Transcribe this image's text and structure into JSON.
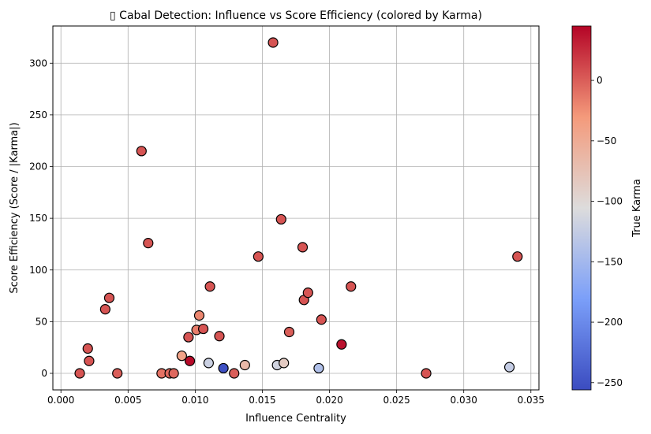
{
  "chart_data": {
    "type": "scatter",
    "title": "▯ Cabal Detection: Influence vs Score Efficiency (colored by Karma)",
    "xlabel": "Influence Centrality",
    "ylabel": "Score Efficiency (Score / |Karma|)",
    "xlim": [
      -0.0006,
      0.0356
    ],
    "ylim": [
      -16,
      336
    ],
    "xticks": [
      0.0,
      0.005,
      0.01,
      0.015,
      0.02,
      0.025,
      0.03,
      0.035
    ],
    "xtick_labels": [
      "0.000",
      "0.005",
      "0.010",
      "0.015",
      "0.020",
      "0.025",
      "0.030",
      "0.035"
    ],
    "yticks": [
      0,
      50,
      100,
      150,
      200,
      250,
      300
    ],
    "ytick_labels": [
      "0",
      "50",
      "100",
      "150",
      "200",
      "250",
      "300"
    ],
    "grid": true,
    "colorbar": {
      "label": "True Karma",
      "range": [
        -256,
        45
      ],
      "ticks": [
        0,
        -50,
        -100,
        -150,
        -200,
        -250
      ],
      "tick_labels": [
        "0",
        "−50",
        "−100",
        "−150",
        "−200",
        "−250"
      ],
      "colormap": "coolwarm"
    },
    "points": [
      {
        "x": 0.0014,
        "y": 0,
        "karma": 5
      },
      {
        "x": 0.002,
        "y": 24,
        "karma": 5
      },
      {
        "x": 0.0021,
        "y": 12,
        "karma": 5
      },
      {
        "x": 0.0033,
        "y": 62,
        "karma": 5
      },
      {
        "x": 0.0036,
        "y": 73,
        "karma": 5
      },
      {
        "x": 0.0042,
        "y": 0,
        "karma": 0
      },
      {
        "x": 0.006,
        "y": 215,
        "karma": 5
      },
      {
        "x": 0.0065,
        "y": 126,
        "karma": 5
      },
      {
        "x": 0.0075,
        "y": 0,
        "karma": -10
      },
      {
        "x": 0.0081,
        "y": 0,
        "karma": -5
      },
      {
        "x": 0.0084,
        "y": 0,
        "karma": -5
      },
      {
        "x": 0.009,
        "y": 17,
        "karma": -40
      },
      {
        "x": 0.0095,
        "y": 35,
        "karma": 5
      },
      {
        "x": 0.0096,
        "y": 12,
        "karma": 42
      },
      {
        "x": 0.0101,
        "y": 42,
        "karma": -15
      },
      {
        "x": 0.0103,
        "y": 56,
        "karma": -20
      },
      {
        "x": 0.0106,
        "y": 43,
        "karma": 5
      },
      {
        "x": 0.011,
        "y": 10,
        "karma": -120
      },
      {
        "x": 0.0111,
        "y": 84,
        "karma": 5
      },
      {
        "x": 0.0118,
        "y": 36,
        "karma": 5
      },
      {
        "x": 0.0121,
        "y": 5,
        "karma": -252
      },
      {
        "x": 0.0129,
        "y": 0,
        "karma": 0
      },
      {
        "x": 0.0137,
        "y": 8,
        "karma": -65
      },
      {
        "x": 0.0147,
        "y": 113,
        "karma": 5
      },
      {
        "x": 0.0158,
        "y": 320,
        "karma": 5
      },
      {
        "x": 0.0161,
        "y": 8,
        "karma": -115
      },
      {
        "x": 0.0164,
        "y": 149,
        "karma": 5
      },
      {
        "x": 0.0166,
        "y": 10,
        "karma": -85
      },
      {
        "x": 0.017,
        "y": 40,
        "karma": 0
      },
      {
        "x": 0.018,
        "y": 122,
        "karma": 5
      },
      {
        "x": 0.0181,
        "y": 71,
        "karma": 5
      },
      {
        "x": 0.0184,
        "y": 78,
        "karma": 5
      },
      {
        "x": 0.0192,
        "y": 5,
        "karma": -140
      },
      {
        "x": 0.0194,
        "y": 52,
        "karma": 5
      },
      {
        "x": 0.0209,
        "y": 28,
        "karma": 38
      },
      {
        "x": 0.0216,
        "y": 84,
        "karma": 5
      },
      {
        "x": 0.0272,
        "y": 0,
        "karma": 5
      },
      {
        "x": 0.0334,
        "y": 6,
        "karma": -125
      },
      {
        "x": 0.034,
        "y": 113,
        "karma": 5
      }
    ]
  }
}
